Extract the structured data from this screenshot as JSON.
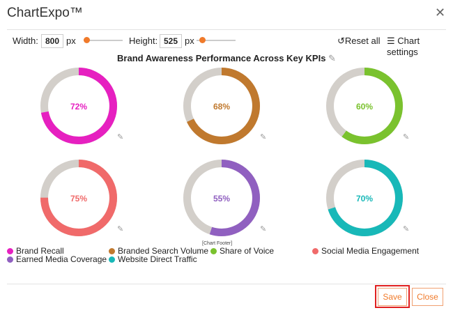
{
  "app": {
    "title": "ChartExpo™"
  },
  "toolbar": {
    "width_label": "Width:",
    "width_value": "800",
    "height_label": "Height:",
    "height_value": "525",
    "unit": "px",
    "reset_label": "Reset all",
    "settings_label": "Chart settings"
  },
  "chart_data": {
    "type": "pie",
    "title": "Brand Awareness Performance Across Key KPIs",
    "footer": "[Chart Footer]",
    "series": [
      {
        "name": "Brand Recall",
        "value": 72,
        "label": "72%",
        "color": "#e620c0"
      },
      {
        "name": "Branded Search Volume",
        "value": 68,
        "label": "68%",
        "color": "#c0792e"
      },
      {
        "name": "Share of Voice",
        "value": 60,
        "label": "60%",
        "color": "#7ac22e"
      },
      {
        "name": "Social Media Engagement",
        "value": 75,
        "label": "75%",
        "color": "#f06a6a"
      },
      {
        "name": "Earned Media Coverage",
        "value": 55,
        "label": "55%",
        "color": "#9060c0"
      },
      {
        "name": "Website Direct Traffic",
        "value": 70,
        "label": "70%",
        "color": "#18b8b8"
      }
    ],
    "remainder_color": "#d3cfca"
  },
  "footer": {
    "save_label": "Save",
    "close_label": "Close"
  }
}
